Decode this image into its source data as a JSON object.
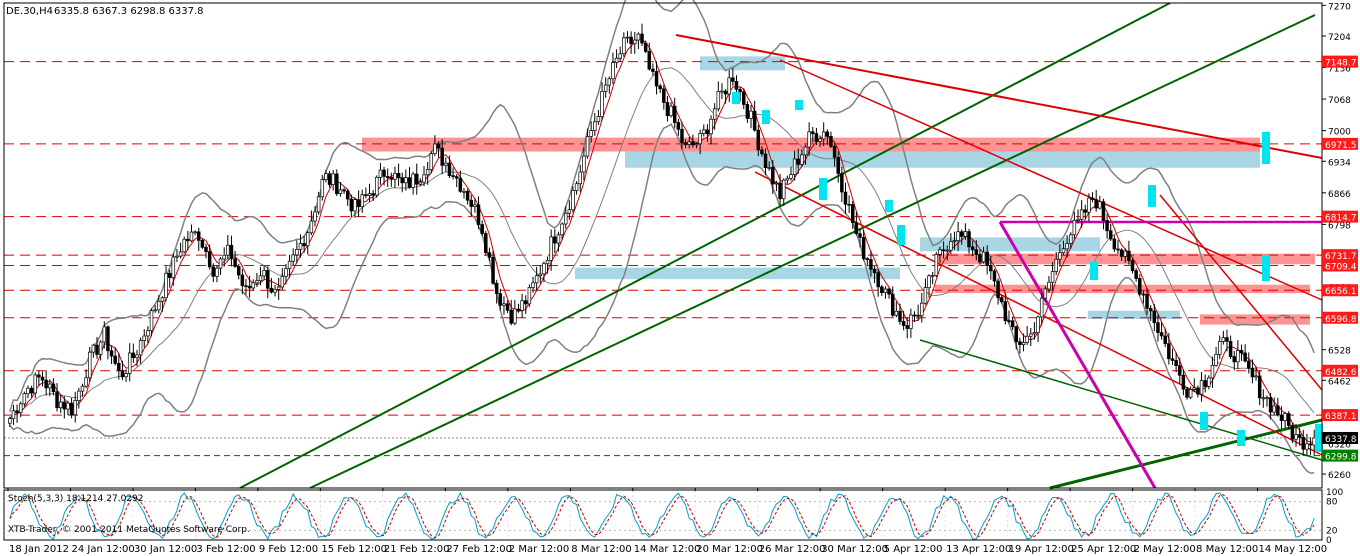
{
  "header": {
    "symbol_label": "DE.30,H4",
    "ohlc_label": "6335.8 6367.3 6298.8 6337.8"
  },
  "stoch": {
    "label": "Stoch(5,3,3) 18.1214 27.0292",
    "levels": [
      100,
      80,
      20,
      0
    ]
  },
  "copyright": "XTB-Trader, © 2001-2011 MetaQuotes Software Corp.",
  "colors": {
    "bull_candle": "#ffffff",
    "bear_candle": "#000000",
    "bollinger": "#808080",
    "ma": "#cc0000",
    "trend_green": "#006400",
    "trend_red": "#dd0000",
    "magenta": "#cc00aa",
    "resistance_zone": "#ff6e6e",
    "support_zone": "#8cc8dc",
    "cyan_marker": "#00e5ee",
    "level_label_bg": "#ff1a1a",
    "current_label_bg": "#000000",
    "green_label_bg": "#008000",
    "stoch_main": "#00a0c8",
    "stoch_signal": "#cc0000"
  },
  "chart_data": {
    "type": "candlestick",
    "title": "DE.30,H4",
    "ylim": [
      6230,
      7275
    ],
    "y_ticks": [
      7270,
      7204,
      7136,
      7068,
      7000,
      6934,
      6866,
      6798,
      6730,
      6664,
      6596,
      6528,
      6462,
      6394,
      6326,
      6260
    ],
    "x_tick_labels": [
      "18 Jan 2012",
      "24 Jan 12:00",
      "30 Jan 12:00",
      "3 Feb 12:00",
      "9 Feb 12:00",
      "15 Feb 12:00",
      "21 Feb 12:00",
      "27 Feb 12:00",
      "2 Mar 12:00",
      "8 Mar 12:00",
      "14 Mar 12:00",
      "20 Mar 12:00",
      "26 Mar 12:00",
      "30 Mar 12:00",
      "5 Apr 12:00",
      "13 Apr 12:00",
      "19 Apr 12:00",
      "25 Apr 12:00",
      "2 May 12:00",
      "8 May 12:00",
      "14 May 12:00"
    ],
    "close_path": [
      6380,
      6440,
      6470,
      6420,
      6400,
      6500,
      6560,
      6470,
      6520,
      6600,
      6680,
      6760,
      6780,
      6700,
      6740,
      6650,
      6700,
      6640,
      6720,
      6790,
      6900,
      6880,
      6830,
      6870,
      6920,
      6880,
      6900,
      6960,
      6920,
      6870,
      6800,
      6650,
      6600,
      6640,
      6720,
      6800,
      6880,
      7000,
      7100,
      7180,
      7200,
      7100,
      7040,
      6960,
      6980,
      7060,
      7120,
      7040,
      6940,
      6860,
      6930,
      6990,
      7000,
      6880,
      6760,
      6700,
      6630,
      6580,
      6620,
      6720,
      6780,
      6760,
      6720,
      6640,
      6540,
      6560,
      6660,
      6760,
      6800,
      6860,
      6780,
      6720,
      6660,
      6580,
      6500,
      6440,
      6460,
      6540,
      6520,
      6470,
      6420,
      6380,
      6330,
      6340
    ],
    "levels": [
      {
        "value": 7148.7,
        "label": "7148.7",
        "style": "red"
      },
      {
        "value": 6971.5,
        "label": "6971.5",
        "style": "red"
      },
      {
        "value": 6814.7,
        "label": "6814.7",
        "style": "red"
      },
      {
        "value": 6731.7,
        "label": "6731.7",
        "style": "red"
      },
      {
        "value": 6709.4,
        "label": "6709.4",
        "style": "red"
      },
      {
        "value": 6656.1,
        "label": "6656.1",
        "style": "red"
      },
      {
        "value": 6596.8,
        "label": "6596.8",
        "style": "red"
      },
      {
        "value": 6482.6,
        "label": "6482.6",
        "style": "red"
      },
      {
        "value": 6387.1,
        "label": "6387.1",
        "style": "red"
      },
      {
        "value": 6337.8,
        "label": "6337.8",
        "style": "current"
      },
      {
        "value": 6299.8,
        "label": "6299.8",
        "style": "green"
      }
    ],
    "zones": [
      {
        "kind": "resistance",
        "from": 6955,
        "to": 6985
      },
      {
        "kind": "support",
        "from": 6920,
        "to": 6955
      },
      {
        "kind": "support",
        "from": 7130,
        "to": 7160
      },
      {
        "kind": "support",
        "from": 6680,
        "to": 6705
      },
      {
        "kind": "support",
        "from": 6740,
        "to": 6770
      },
      {
        "kind": "resistance",
        "from": 6712,
        "to": 6735
      },
      {
        "kind": "resistance",
        "from": 6650,
        "to": 6668
      },
      {
        "kind": "resistance",
        "from": 6582,
        "to": 6604
      },
      {
        "kind": "support",
        "from": 6594,
        "to": 6612
      }
    ]
  }
}
